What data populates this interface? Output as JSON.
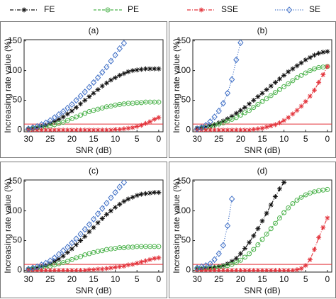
{
  "chart_data": [
    {
      "type": "line",
      "title": "(a)",
      "xlabel": "SNR (dB)",
      "ylabel": "Increasing rate value (%)",
      "x": [
        30,
        29,
        28,
        27,
        26,
        25,
        24,
        23,
        22,
        21,
        20,
        19,
        18,
        17,
        16,
        15,
        14,
        13,
        12,
        11,
        10,
        9,
        8,
        7,
        6,
        5,
        4,
        3,
        2,
        1,
        0
      ],
      "xlim": [
        31,
        -1
      ],
      "xticks": [
        30,
        25,
        20,
        15,
        10,
        5,
        0
      ],
      "ylim": [
        -3,
        152
      ],
      "yticks": [
        0,
        50,
        100,
        150
      ],
      "hline": 10,
      "hline_color": "#e3343c",
      "series": [
        {
          "name": "FE",
          "color": "#111111",
          "marker": "asterisk",
          "linestyle": "dashdot",
          "values": [
            2,
            3,
            4,
            6,
            8,
            11,
            14,
            18,
            22,
            27,
            32,
            38,
            44,
            50,
            56,
            62,
            68,
            74,
            79,
            84,
            88,
            92,
            95,
            98,
            100,
            101,
            102,
            103,
            103,
            103,
            103
          ]
        },
        {
          "name": "PE",
          "color": "#4db34d",
          "marker": "circle",
          "linestyle": "dashed",
          "values": [
            1,
            2,
            3,
            4,
            5,
            7,
            9,
            11,
            13,
            16,
            19,
            22,
            25,
            28,
            31,
            33,
            35,
            37,
            39,
            40,
            42,
            43,
            44,
            45,
            45,
            46,
            46,
            47,
            47,
            47,
            47
          ]
        },
        {
          "name": "SSE",
          "color": "#e3343c",
          "marker": "asterisk",
          "linestyle": "dashdot",
          "values": [
            0,
            0,
            0,
            0,
            0,
            0,
            0,
            0,
            0,
            0,
            0,
            0,
            0,
            0,
            0,
            0,
            0,
            0,
            0,
            0,
            1,
            1,
            2,
            3,
            4,
            6,
            8,
            11,
            14,
            18,
            21
          ]
        },
        {
          "name": "SE",
          "color": "#3f6fc6",
          "marker": "diamond",
          "linestyle": "dotted",
          "values": [
            2,
            4,
            6,
            9,
            12,
            16,
            21,
            26,
            31,
            37,
            43,
            50,
            57,
            64,
            72,
            80,
            88,
            97,
            106,
            116,
            126,
            137,
            146,
            null,
            null,
            null,
            null,
            null,
            null,
            null,
            null
          ]
        }
      ]
    },
    {
      "type": "line",
      "title": "(b)",
      "xlabel": "SNR (dB)",
      "ylabel": "Increasing rate value (%)",
      "x": [
        30,
        29,
        28,
        27,
        26,
        25,
        24,
        23,
        22,
        21,
        20,
        19,
        18,
        17,
        16,
        15,
        14,
        13,
        12,
        11,
        10,
        9,
        8,
        7,
        6,
        5,
        4,
        3,
        2,
        1,
        0
      ],
      "xlim": [
        31,
        -1
      ],
      "xticks": [
        30,
        25,
        20,
        15,
        10,
        5,
        0
      ],
      "ylim": [
        -3,
        152
      ],
      "yticks": [
        0,
        50,
        100,
        150
      ],
      "hline": 10,
      "hline_color": "#e3343c",
      "series": [
        {
          "color": "#111111",
          "marker": "asterisk",
          "linestyle": "dashdot",
          "values": [
            3,
            4,
            5,
            7,
            9,
            12,
            15,
            19,
            23,
            28,
            33,
            38,
            44,
            50,
            56,
            62,
            68,
            74,
            80,
            86,
            92,
            98,
            103,
            108,
            113,
            118,
            122,
            126,
            129,
            131,
            132
          ]
        },
        {
          "color": "#4db34d",
          "marker": "circle",
          "linestyle": "dashed",
          "values": [
            2,
            3,
            4,
            6,
            8,
            10,
            12,
            15,
            18,
            21,
            25,
            29,
            33,
            38,
            43,
            48,
            53,
            58,
            63,
            68,
            73,
            78,
            83,
            88,
            92,
            96,
            100,
            103,
            105,
            106,
            107
          ]
        },
        {
          "color": "#e3343c",
          "marker": "asterisk",
          "linestyle": "dashdot",
          "values": [
            0,
            0,
            0,
            0,
            0,
            0,
            0,
            0,
            0,
            0,
            0,
            0,
            0,
            1,
            2,
            3,
            5,
            7,
            9,
            12,
            16,
            21,
            27,
            33,
            40,
            48,
            57,
            67,
            80,
            93,
            107
          ]
        },
        {
          "color": "#3f6fc6",
          "marker": "diamond",
          "linestyle": "dotted",
          "values": [
            2,
            4,
            8,
            14,
            22,
            32,
            45,
            62,
            85,
            118,
            147,
            null,
            null,
            null,
            null,
            null,
            null,
            null,
            null,
            null,
            null,
            null,
            null,
            null,
            null,
            null,
            null,
            null,
            null,
            null,
            null
          ]
        }
      ]
    },
    {
      "type": "line",
      "title": "(c)",
      "xlabel": "SNR (dB)",
      "ylabel": "Increasing rate value (%)",
      "x": [
        30,
        29,
        28,
        27,
        26,
        25,
        24,
        23,
        22,
        21,
        20,
        19,
        18,
        17,
        16,
        15,
        14,
        13,
        12,
        11,
        10,
        9,
        8,
        7,
        6,
        5,
        4,
        3,
        2,
        1,
        0
      ],
      "xlim": [
        31,
        -1
      ],
      "xticks": [
        30,
        25,
        20,
        15,
        10,
        5,
        0
      ],
      "ylim": [
        -3,
        152
      ],
      "yticks": [
        0,
        50,
        100,
        150
      ],
      "hline": 10,
      "hline_color": "#e3343c",
      "series": [
        {
          "color": "#111111",
          "marker": "asterisk",
          "linestyle": "dashdot",
          "values": [
            2,
            3,
            4,
            6,
            8,
            11,
            15,
            19,
            24,
            30,
            36,
            43,
            50,
            57,
            65,
            72,
            80,
            87,
            94,
            100,
            106,
            111,
            116,
            120,
            123,
            126,
            128,
            129,
            130,
            131,
            131
          ]
        },
        {
          "color": "#4db34d",
          "marker": "circle",
          "linestyle": "dashed",
          "values": [
            1,
            2,
            3,
            4,
            5,
            7,
            9,
            11,
            13,
            15,
            18,
            21,
            23,
            26,
            28,
            30,
            32,
            33,
            35,
            36,
            37,
            38,
            38,
            39,
            39,
            40,
            40,
            40,
            40,
            40,
            40
          ]
        },
        {
          "color": "#e3343c",
          "marker": "asterisk",
          "linestyle": "dashdot",
          "values": [
            0,
            0,
            0,
            0,
            0,
            0,
            0,
            0,
            0,
            0,
            0,
            0,
            0,
            0,
            1,
            1,
            2,
            2,
            3,
            4,
            5,
            6,
            7,
            9,
            10,
            12,
            14,
            16,
            18,
            20,
            21
          ]
        },
        {
          "color": "#3f6fc6",
          "marker": "diamond",
          "linestyle": "dotted",
          "values": [
            2,
            4,
            6,
            9,
            12,
            16,
            21,
            27,
            33,
            39,
            46,
            53,
            61,
            69,
            77,
            86,
            95,
            104,
            113,
            122,
            131,
            140,
            148,
            null,
            null,
            null,
            null,
            null,
            null,
            null,
            null
          ]
        }
      ]
    },
    {
      "type": "line",
      "title": "(d)",
      "xlabel": "SNR (dB)",
      "ylabel": "Increasing rate value (%)",
      "x": [
        30,
        29,
        28,
        27,
        26,
        25,
        24,
        23,
        22,
        21,
        20,
        19,
        18,
        17,
        16,
        15,
        14,
        13,
        12,
        11,
        10,
        9,
        8,
        7,
        6,
        5,
        4,
        3,
        2,
        1,
        0
      ],
      "xlim": [
        31,
        -1
      ],
      "xticks": [
        30,
        25,
        20,
        15,
        10,
        5,
        0
      ],
      "ylim": [
        -3,
        152
      ],
      "yticks": [
        0,
        50,
        100,
        150
      ],
      "hline": 10,
      "hline_color": "#e3343c",
      "series": [
        {
          "color": "#111111",
          "marker": "asterisk",
          "linestyle": "dashdot",
          "values": [
            3,
            3,
            4,
            4,
            5,
            6,
            8,
            11,
            15,
            20,
            28,
            37,
            47,
            58,
            70,
            83,
            96,
            110,
            124,
            137,
            148,
            null,
            null,
            null,
            null,
            null,
            null,
            null,
            null,
            null,
            null
          ]
        },
        {
          "color": "#4db34d",
          "marker": "circle",
          "linestyle": "dashed",
          "values": [
            2,
            2,
            3,
            3,
            4,
            5,
            6,
            8,
            10,
            13,
            17,
            22,
            28,
            35,
            43,
            52,
            61,
            70,
            79,
            88,
            97,
            105,
            112,
            118,
            123,
            127,
            130,
            132,
            134,
            135,
            136
          ]
        },
        {
          "color": "#e3343c",
          "marker": "asterisk",
          "linestyle": "dashdot",
          "values": [
            0,
            0,
            0,
            0,
            0,
            0,
            0,
            0,
            0,
            0,
            0,
            0,
            0,
            0,
            0,
            0,
            0,
            0,
            0,
            0,
            0,
            0,
            0,
            1,
            3,
            8,
            18,
            35,
            55,
            72,
            88
          ]
        },
        {
          "color": "#3f6fc6",
          "marker": "diamond",
          "linestyle": "dotted",
          "values": [
            4,
            6,
            8,
            11,
            18,
            28,
            42,
            75,
            120,
            null,
            null,
            null,
            null,
            null,
            null,
            null,
            null,
            null,
            null,
            null,
            null,
            null,
            null,
            null,
            null,
            null,
            null,
            null,
            null,
            null,
            null
          ]
        }
      ]
    }
  ]
}
